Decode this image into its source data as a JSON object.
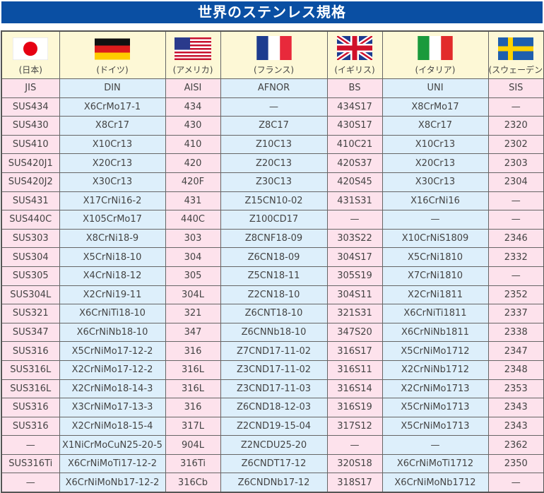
{
  "title": "世界のステンレス規格",
  "colors": {
    "title_bg": "#0a4fa3",
    "pink": "#fde2ec",
    "blue": "#ddeffb",
    "flag_row": "#fdf8d6"
  },
  "countries": [
    {
      "flag": "japan-flag-icon",
      "label": "(日本)"
    },
    {
      "flag": "germany-flag-icon",
      "label": "(ドイツ)"
    },
    {
      "flag": "usa-flag-icon",
      "label": "(アメリカ)"
    },
    {
      "flag": "france-flag-icon",
      "label": "(フランス)"
    },
    {
      "flag": "uk-flag-icon",
      "label": "(イギリス)"
    },
    {
      "flag": "italy-flag-icon",
      "label": "(イタリア)"
    },
    {
      "flag": "sweden-flag-icon",
      "label": "(スウェーデン)"
    }
  ],
  "headers": [
    "JIS",
    "DIN",
    "AISI",
    "AFNOR",
    "BS",
    "UNI",
    "SIS"
  ],
  "rows": [
    [
      "SUS434",
      "X6CrMo17-1",
      "434",
      "—",
      "434S17",
      "X8CrMo17",
      "—"
    ],
    [
      "SUS430",
      "X8Cr17",
      "430",
      "Z8C17",
      "430S17",
      "X8Cr17",
      "2320"
    ],
    [
      "SUS410",
      "X10Cr13",
      "410",
      "Z10C13",
      "410C21",
      "X10Cr13",
      "2302"
    ],
    [
      "SUS420J1",
      "X20Cr13",
      "420",
      "Z20C13",
      "420S37",
      "X20Cr13",
      "2303"
    ],
    [
      "SUS420J2",
      "X30Cr13",
      "420F",
      "Z30C13",
      "420S45",
      "X30Cr13",
      "2304"
    ],
    [
      "SUS431",
      "X17CrNi16-2",
      "431",
      "Z15CN10-02",
      "431S31",
      "X16CrNi16",
      "—"
    ],
    [
      "SUS440C",
      "X105CrMo17",
      "440C",
      "Z100CD17",
      "—",
      "—",
      "—"
    ],
    [
      "SUS303",
      "X8CrNi18-9",
      "303",
      "Z8CNF18-09",
      "303S22",
      "X10CrNiS1809",
      "2346"
    ],
    [
      "SUS304",
      "X5CrNi18-10",
      "304",
      "Z6CN18-09",
      "304S17",
      "X5CrNi1810",
      "2332"
    ],
    [
      "SUS305",
      "X4CrNi18-12",
      "305",
      "Z5CN18-11",
      "305S19",
      "X7CrNi1810",
      "—"
    ],
    [
      "SUS304L",
      "X2CrNi19-11",
      "304L",
      "Z2CN18-10",
      "304S11",
      "X2CrNi1811",
      "2352"
    ],
    [
      "SUS321",
      "X6CrNiTi18-10",
      "321",
      "Z6CNT18-10",
      "321S31",
      "X6CrNiTi1811",
      "2337"
    ],
    [
      "SUS347",
      "X6CrNiNb18-10",
      "347",
      "Z6CNNb18-10",
      "347S20",
      "X6CrNiNb1811",
      "2338"
    ],
    [
      "SUS316",
      "X5CrNiMo17-12-2",
      "316",
      "Z7CND17-11-02",
      "316S17",
      "X5CrNiMo1712",
      "2347"
    ],
    [
      "SUS316L",
      "X2CrNiMo17-12-2",
      "316L",
      "Z3CND17-11-02",
      "316S11",
      "X2CrNiNb1712",
      "2348"
    ],
    [
      "SUS316L",
      "X2CrNiMo18-14-3",
      "316L",
      "Z3CND17-11-03",
      "316S14",
      "X2CrNiMo1713",
      "2353"
    ],
    [
      "SUS316",
      "X3CrNiMo17-13-3",
      "316",
      "Z6CND18-12-03",
      "316S19",
      "X5CrNiMo1713",
      "2343"
    ],
    [
      "SUS316",
      "X2CrNiMo18-15-4",
      "317L",
      "Z2CND19-15-04",
      "317S12",
      "X5CrNiMo1713",
      "2343"
    ],
    [
      "—",
      "X1NiCrMoCuN25-20-5",
      "904L",
      "Z2NCDU25-20",
      "—",
      "—",
      "2362"
    ],
    [
      "SUS316Ti",
      "X6CrNiMoTi17-12-2",
      "316Ti",
      "Z6CNDT17-12",
      "320S18",
      "X6CrNiMoTi1712",
      "2350"
    ],
    [
      "—",
      "X6CrNiMoNb17-12-2",
      "316Cb",
      "Z6CNDNb17-12",
      "318S17",
      "X6CrNiMoNb1712",
      "—"
    ]
  ]
}
